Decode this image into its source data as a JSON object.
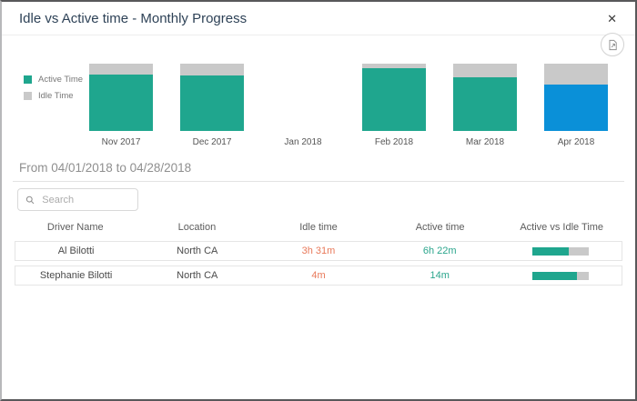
{
  "dialog": {
    "title": "Idle vs Active time - Monthly Progress",
    "close_glyph": "✕"
  },
  "colors": {
    "active": "#1fa68e",
    "idle": "#c9c9c9",
    "selected_month": "#0a90d8",
    "idle_text": "#e8795a",
    "active_text": "#2aa58c"
  },
  "chart": {
    "legend": [
      {
        "label": "Active Time",
        "key": "active"
      },
      {
        "label": "Idle Time",
        "key": "idle"
      }
    ],
    "months": [
      {
        "label": "Nov 2017",
        "active_pct": 84,
        "idle_pct": 16,
        "selected": false
      },
      {
        "label": "Dec 2017",
        "active_pct": 83,
        "idle_pct": 17,
        "selected": false
      },
      {
        "label": "Jan 2018",
        "active_pct": 0,
        "idle_pct": 0,
        "selected": false
      },
      {
        "label": "Feb 2018",
        "active_pct": 93,
        "idle_pct": 7,
        "selected": false
      },
      {
        "label": "Mar 2018",
        "active_pct": 80,
        "idle_pct": 20,
        "selected": false
      },
      {
        "label": "Apr 2018",
        "active_pct": 69,
        "idle_pct": 31,
        "selected": true
      }
    ]
  },
  "chart_data": {
    "type": "bar",
    "stacked": true,
    "title": "Idle vs Active time - Monthly Progress",
    "categories": [
      "Nov 2017",
      "Dec 2017",
      "Jan 2018",
      "Feb 2018",
      "Mar 2018",
      "Apr 2018"
    ],
    "series": [
      {
        "name": "Active Time",
        "values": [
          84,
          83,
          0,
          93,
          80,
          69
        ]
      },
      {
        "name": "Idle Time",
        "values": [
          16,
          17,
          0,
          7,
          20,
          31
        ]
      }
    ],
    "value_unit": "percent of month total, estimated from bar proportions",
    "ylim": [
      0,
      100
    ],
    "legend_position": "left",
    "highlighted_category": "Apr 2018"
  },
  "period": {
    "text": "From 04/01/2018 to 04/28/2018"
  },
  "search": {
    "placeholder": "Search",
    "value": ""
  },
  "table": {
    "columns": [
      "Driver Name",
      "Location",
      "Idle time",
      "Active time",
      "Active vs Idle Time"
    ],
    "rows": [
      {
        "driver": "Al Bilotti",
        "location": "North CA",
        "idle_time": "3h 31m",
        "active_time": "6h 22m",
        "active_ratio_pct": 64
      },
      {
        "driver": "Stephanie Bilotti",
        "location": "North CA",
        "idle_time": "4m",
        "active_time": "14m",
        "active_ratio_pct": 78
      }
    ]
  }
}
